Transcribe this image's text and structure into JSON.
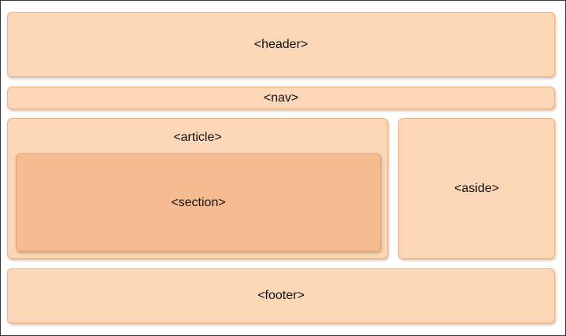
{
  "layout_blocks": {
    "header": "<header>",
    "nav": "<nav>",
    "article": "<article>",
    "section": "<section>",
    "aside": "<aside>",
    "footer": "<footer>"
  },
  "colors": {
    "block_fill": "#fbd7b8",
    "block_border": "#ebb58a",
    "section_fill": "#f7bb91",
    "frame_border": "#3a3a3a"
  }
}
